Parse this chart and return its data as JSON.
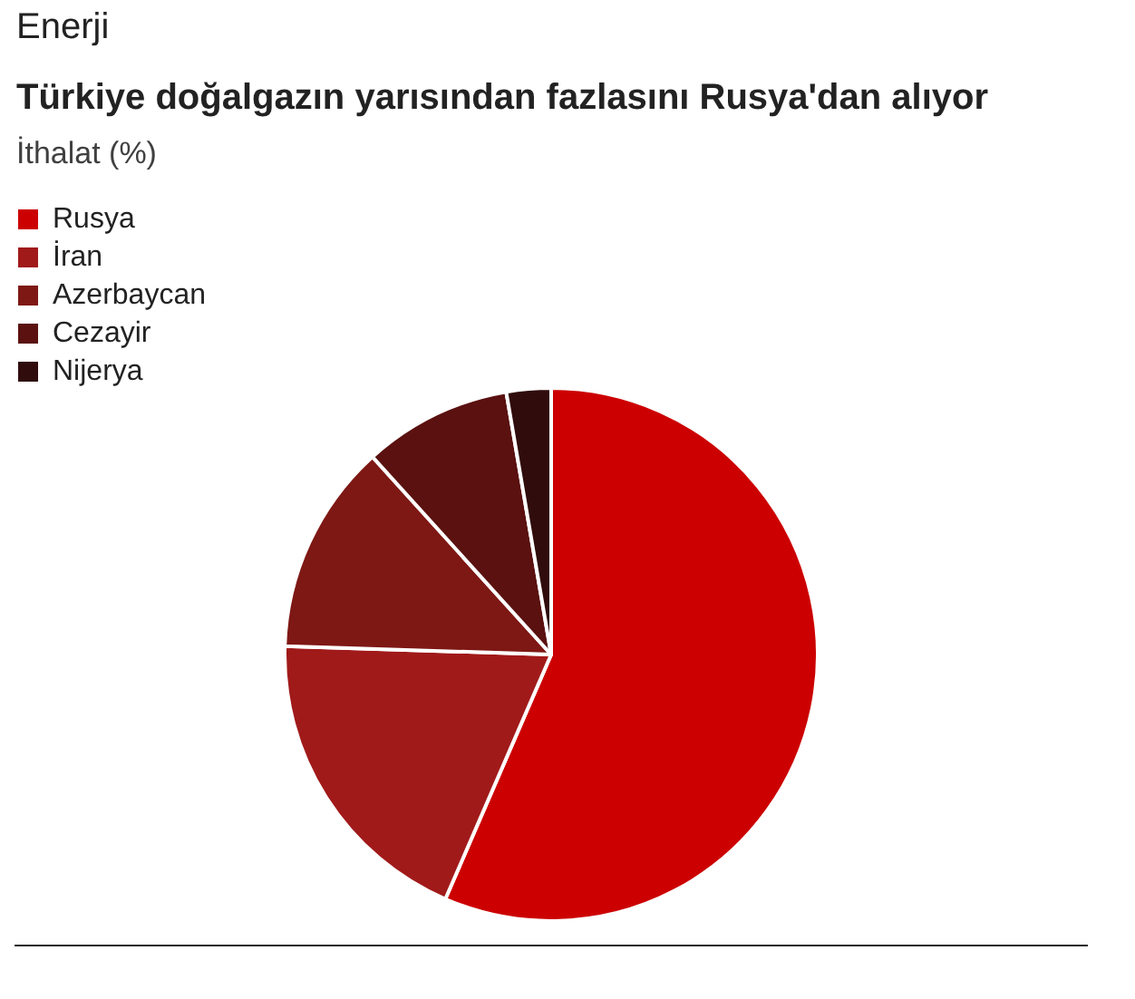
{
  "chart_data": {
    "type": "pie",
    "title": "Türkiye doğalgazın yarısından fazlasını Rusya'dan alıyor",
    "subtitle": "İthalat (%)",
    "annotations": [
      "Enerji"
    ],
    "categories": [
      "Rusya",
      "İran",
      "Azerbaycan",
      "Cezayir",
      "Nijerya"
    ],
    "values": [
      56.5,
      19.0,
      12.8,
      9.0,
      2.7
    ],
    "colors": [
      "#cc0000",
      "#a11a1a",
      "#7e1814",
      "#5a1110",
      "#300c0c"
    ],
    "legend": "top left"
  }
}
